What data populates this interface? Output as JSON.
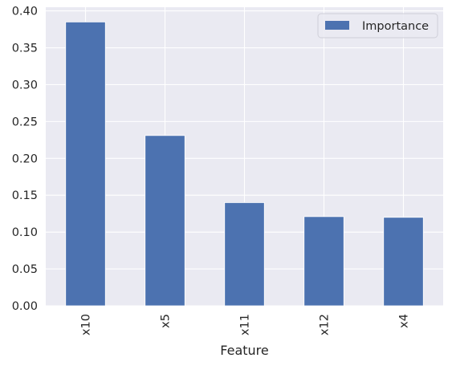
{
  "chart_data": {
    "type": "bar",
    "categories": [
      "x10",
      "x5",
      "x11",
      "x12",
      "x4"
    ],
    "series": [
      {
        "name": "Importance",
        "values": [
          0.385,
          0.231,
          0.14,
          0.121,
          0.12
        ]
      }
    ],
    "xlabel": "Feature",
    "ylabel": "",
    "ylim": [
      0,
      0.405
    ],
    "yticks": [
      0.0,
      0.05,
      0.1,
      0.15,
      0.2,
      0.25,
      0.3,
      0.35,
      0.4
    ],
    "ytick_labels": [
      "0.00",
      "0.05",
      "0.10",
      "0.15",
      "0.20",
      "0.25",
      "0.30",
      "0.35",
      "0.40"
    ],
    "grid": true,
    "legend_position": "top-right",
    "colors": {
      "bar": "#4c72b0",
      "plot_background": "#eaeaf2",
      "grid": "#ffffff"
    }
  }
}
